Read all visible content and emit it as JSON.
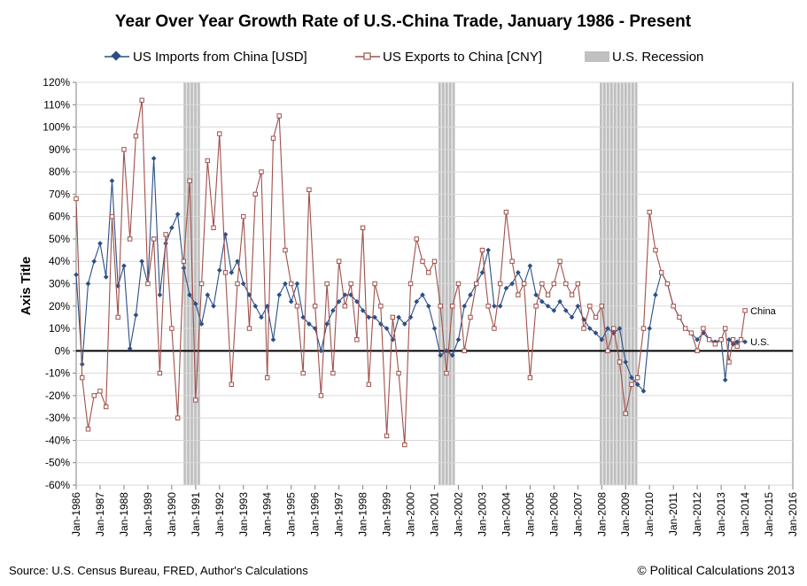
{
  "chart_data": {
    "type": "line",
    "title": "Year Over Year Growth Rate of U.S.-China Trade, January 1986 - Present",
    "ylabel": "Axis Title",
    "xlabel": "",
    "ylim": [
      -0.6,
      1.2
    ],
    "xlim": [
      1986,
      2016
    ],
    "y_ticks": [
      -0.6,
      -0.5,
      -0.4,
      -0.3,
      -0.2,
      -0.1,
      0,
      0.1,
      0.2,
      0.3,
      0.4,
      0.5,
      0.6,
      0.7,
      0.8,
      0.9,
      1.0,
      1.1,
      1.2
    ],
    "y_tick_labels": [
      "-60%",
      "-50%",
      "-40%",
      "-30%",
      "-20%",
      "-10%",
      "0%",
      "10%",
      "20%",
      "30%",
      "40%",
      "50%",
      "60%",
      "70%",
      "80%",
      "90%",
      "100%",
      "110%",
      "120%"
    ],
    "x_ticks": [
      1986,
      1987,
      1988,
      1989,
      1990,
      1991,
      1992,
      1993,
      1994,
      1995,
      1996,
      1997,
      1998,
      1999,
      2000,
      2001,
      2002,
      2003,
      2004,
      2005,
      2006,
      2007,
      2008,
      2009,
      2010,
      2011,
      2012,
      2013,
      2014,
      2015,
      2016
    ],
    "x_tick_labels": [
      "Jan-1986",
      "Jan-1987",
      "Jan-1988",
      "Jan-1989",
      "Jan-1990",
      "Jan-1991",
      "Jan-1992",
      "Jan-1993",
      "Jan-1994",
      "Jan-1995",
      "Jan-1996",
      "Jan-1997",
      "Jan-1998",
      "Jan-1999",
      "Jan-2000",
      "Jan-2001",
      "Jan-2002",
      "Jan-2003",
      "Jan-2004",
      "Jan-2005",
      "Jan-2006",
      "Jan-2007",
      "Jan-2008",
      "Jan-2009",
      "Jan-2010",
      "Jan-2011",
      "Jan-2012",
      "Jan-2013",
      "Jan-2014",
      "Jan-2015",
      "Jan-2016"
    ],
    "grid": "horizontal",
    "legend_position": "top",
    "recessions": [
      {
        "start": 1990.5,
        "end": 1991.17
      },
      {
        "start": 2001.17,
        "end": 2001.83
      },
      {
        "start": 2007.92,
        "end": 2009.42
      }
    ],
    "series": [
      {
        "name": "US Imports from China [USD]",
        "color": "#2a4f86",
        "marker": "diamond",
        "points": [
          [
            1986.0,
            0.34
          ],
          [
            1986.25,
            -0.06
          ],
          [
            1986.5,
            0.3
          ],
          [
            1986.75,
            0.4
          ],
          [
            1987.0,
            0.48
          ],
          [
            1987.25,
            0.33
          ],
          [
            1987.5,
            0.76
          ],
          [
            1987.75,
            0.29
          ],
          [
            1988.0,
            0.38
          ],
          [
            1988.25,
            0.01
          ],
          [
            1988.5,
            0.16
          ],
          [
            1988.75,
            0.4
          ],
          [
            1989.0,
            0.3
          ],
          [
            1989.25,
            0.86
          ],
          [
            1989.5,
            0.25
          ],
          [
            1989.75,
            0.48
          ],
          [
            1990.0,
            0.55
          ],
          [
            1990.25,
            0.61
          ],
          [
            1990.5,
            0.37
          ],
          [
            1990.75,
            0.25
          ],
          [
            1991.0,
            0.21
          ],
          [
            1991.25,
            0.12
          ],
          [
            1991.5,
            0.25
          ],
          [
            1991.75,
            0.2
          ],
          [
            1992.0,
            0.36
          ],
          [
            1992.25,
            0.52
          ],
          [
            1992.5,
            0.35
          ],
          [
            1992.75,
            0.4
          ],
          [
            1993.0,
            0.3
          ],
          [
            1993.25,
            0.25
          ],
          [
            1993.5,
            0.2
          ],
          [
            1993.75,
            0.15
          ],
          [
            1994.0,
            0.2
          ],
          [
            1994.25,
            0.05
          ],
          [
            1994.5,
            0.25
          ],
          [
            1994.75,
            0.3
          ],
          [
            1995.0,
            0.22
          ],
          [
            1995.25,
            0.3
          ],
          [
            1995.5,
            0.15
          ],
          [
            1995.75,
            0.12
          ],
          [
            1996.0,
            0.1
          ],
          [
            1996.25,
            0.0
          ],
          [
            1996.5,
            0.12
          ],
          [
            1996.75,
            0.18
          ],
          [
            1997.0,
            0.22
          ],
          [
            1997.25,
            0.25
          ],
          [
            1997.5,
            0.25
          ],
          [
            1997.75,
            0.22
          ],
          [
            1998.0,
            0.18
          ],
          [
            1998.25,
            0.15
          ],
          [
            1998.5,
            0.15
          ],
          [
            1998.75,
            0.12
          ],
          [
            1999.0,
            0.1
          ],
          [
            1999.25,
            0.05
          ],
          [
            1999.5,
            0.15
          ],
          [
            1999.75,
            0.12
          ],
          [
            2000.0,
            0.15
          ],
          [
            2000.25,
            0.22
          ],
          [
            2000.5,
            0.25
          ],
          [
            2000.75,
            0.2
          ],
          [
            2001.0,
            0.1
          ],
          [
            2001.25,
            -0.02
          ],
          [
            2001.5,
            0.0
          ],
          [
            2001.75,
            -0.02
          ],
          [
            2002.0,
            0.05
          ],
          [
            2002.25,
            0.2
          ],
          [
            2002.5,
            0.25
          ],
          [
            2002.75,
            0.3
          ],
          [
            2003.0,
            0.35
          ],
          [
            2003.25,
            0.45
          ],
          [
            2003.5,
            0.2
          ],
          [
            2003.75,
            0.2
          ],
          [
            2004.0,
            0.28
          ],
          [
            2004.25,
            0.3
          ],
          [
            2004.5,
            0.35
          ],
          [
            2004.75,
            0.3
          ],
          [
            2005.0,
            0.38
          ],
          [
            2005.25,
            0.25
          ],
          [
            2005.5,
            0.22
          ],
          [
            2005.75,
            0.2
          ],
          [
            2006.0,
            0.18
          ],
          [
            2006.25,
            0.22
          ],
          [
            2006.5,
            0.18
          ],
          [
            2006.75,
            0.15
          ],
          [
            2007.0,
            0.2
          ],
          [
            2007.25,
            0.14
          ],
          [
            2007.5,
            0.1
          ],
          [
            2007.75,
            0.08
          ],
          [
            2008.0,
            0.05
          ],
          [
            2008.25,
            0.1
          ],
          [
            2008.5,
            0.08
          ],
          [
            2008.75,
            0.1
          ],
          [
            2009.0,
            -0.05
          ],
          [
            2009.25,
            -0.12
          ],
          [
            2009.5,
            -0.15
          ],
          [
            2009.75,
            -0.18
          ],
          [
            2010.0,
            0.1
          ],
          [
            2010.25,
            0.25
          ],
          [
            2010.5,
            0.35
          ],
          [
            2010.75,
            0.3
          ],
          [
            2011.0,
            0.2
          ],
          [
            2011.25,
            0.15
          ],
          [
            2011.5,
            0.1
          ],
          [
            2011.75,
            0.08
          ],
          [
            2012.0,
            0.05
          ],
          [
            2012.25,
            0.08
          ],
          [
            2012.5,
            0.05
          ],
          [
            2012.75,
            0.04
          ],
          [
            2013.0,
            0.05
          ],
          [
            2013.17,
            -0.13
          ],
          [
            2013.33,
            0.05
          ],
          [
            2013.5,
            0.03
          ],
          [
            2013.67,
            0.04
          ],
          [
            2013.83,
            0.05
          ],
          [
            2014.0,
            0.04
          ]
        ]
      },
      {
        "name": "US Exports to China [CNY]",
        "color": "#a0504b",
        "marker": "square",
        "points": [
          [
            1986.0,
            0.68
          ],
          [
            1986.25,
            -0.12
          ],
          [
            1986.5,
            -0.35
          ],
          [
            1986.75,
            -0.2
          ],
          [
            1987.0,
            -0.18
          ],
          [
            1987.25,
            -0.25
          ],
          [
            1987.5,
            0.6
          ],
          [
            1987.75,
            0.15
          ],
          [
            1988.0,
            0.9
          ],
          [
            1988.25,
            0.5
          ],
          [
            1988.5,
            0.96
          ],
          [
            1988.75,
            1.12
          ],
          [
            1989.0,
            0.3
          ],
          [
            1989.25,
            0.5
          ],
          [
            1989.5,
            -0.1
          ],
          [
            1989.75,
            0.52
          ],
          [
            1990.0,
            0.1
          ],
          [
            1990.25,
            -0.3
          ],
          [
            1990.5,
            0.4
          ],
          [
            1990.75,
            0.76
          ],
          [
            1991.0,
            -0.22
          ],
          [
            1991.25,
            0.3
          ],
          [
            1991.5,
            0.85
          ],
          [
            1991.75,
            0.55
          ],
          [
            1992.0,
            0.97
          ],
          [
            1992.25,
            0.35
          ],
          [
            1992.5,
            -0.15
          ],
          [
            1992.75,
            0.3
          ],
          [
            1993.0,
            0.6
          ],
          [
            1993.25,
            0.1
          ],
          [
            1993.5,
            0.7
          ],
          [
            1993.75,
            0.8
          ],
          [
            1994.0,
            -0.12
          ],
          [
            1994.25,
            0.95
          ],
          [
            1994.5,
            1.05
          ],
          [
            1994.75,
            0.45
          ],
          [
            1995.0,
            0.3
          ],
          [
            1995.25,
            0.2
          ],
          [
            1995.5,
            -0.1
          ],
          [
            1995.75,
            0.72
          ],
          [
            1996.0,
            0.2
          ],
          [
            1996.25,
            -0.2
          ],
          [
            1996.5,
            0.3
          ],
          [
            1996.75,
            -0.1
          ],
          [
            1997.0,
            0.4
          ],
          [
            1997.25,
            0.2
          ],
          [
            1997.5,
            0.3
          ],
          [
            1997.75,
            0.05
          ],
          [
            1998.0,
            0.55
          ],
          [
            1998.25,
            -0.15
          ],
          [
            1998.5,
            0.3
          ],
          [
            1998.75,
            0.2
          ],
          [
            1999.0,
            -0.38
          ],
          [
            1999.25,
            0.15
          ],
          [
            1999.5,
            -0.1
          ],
          [
            1999.75,
            -0.42
          ],
          [
            2000.0,
            0.3
          ],
          [
            2000.25,
            0.5
          ],
          [
            2000.5,
            0.4
          ],
          [
            2000.75,
            0.35
          ],
          [
            2001.0,
            0.4
          ],
          [
            2001.25,
            0.2
          ],
          [
            2001.5,
            -0.1
          ],
          [
            2001.75,
            0.2
          ],
          [
            2002.0,
            0.3
          ],
          [
            2002.25,
            0.0
          ],
          [
            2002.5,
            0.15
          ],
          [
            2002.75,
            0.3
          ],
          [
            2003.0,
            0.45
          ],
          [
            2003.25,
            0.2
          ],
          [
            2003.5,
            0.1
          ],
          [
            2003.75,
            0.3
          ],
          [
            2004.0,
            0.62
          ],
          [
            2004.25,
            0.4
          ],
          [
            2004.5,
            0.25
          ],
          [
            2004.75,
            0.3
          ],
          [
            2005.0,
            -0.12
          ],
          [
            2005.25,
            0.2
          ],
          [
            2005.5,
            0.3
          ],
          [
            2005.75,
            0.25
          ],
          [
            2006.0,
            0.3
          ],
          [
            2006.25,
            0.4
          ],
          [
            2006.5,
            0.3
          ],
          [
            2006.75,
            0.25
          ],
          [
            2007.0,
            0.3
          ],
          [
            2007.25,
            0.1
          ],
          [
            2007.5,
            0.2
          ],
          [
            2007.75,
            0.15
          ],
          [
            2008.0,
            0.2
          ],
          [
            2008.25,
            0.0
          ],
          [
            2008.5,
            0.1
          ],
          [
            2008.75,
            -0.05
          ],
          [
            2009.0,
            -0.28
          ],
          [
            2009.25,
            -0.15
          ],
          [
            2009.5,
            -0.12
          ],
          [
            2009.75,
            0.1
          ],
          [
            2010.0,
            0.62
          ],
          [
            2010.25,
            0.45
          ],
          [
            2010.5,
            0.35
          ],
          [
            2010.75,
            0.3
          ],
          [
            2011.0,
            0.2
          ],
          [
            2011.25,
            0.15
          ],
          [
            2011.5,
            0.1
          ],
          [
            2011.75,
            0.08
          ],
          [
            2012.0,
            0.0
          ],
          [
            2012.25,
            0.1
          ],
          [
            2012.5,
            0.05
          ],
          [
            2012.75,
            0.03
          ],
          [
            2013.0,
            0.05
          ],
          [
            2013.17,
            0.1
          ],
          [
            2013.33,
            -0.05
          ],
          [
            2013.5,
            0.05
          ],
          [
            2013.67,
            0.02
          ],
          [
            2013.83,
            0.05
          ],
          [
            2014.0,
            0.18
          ]
        ]
      }
    ],
    "legend": [
      {
        "label": "US Imports from China [USD]",
        "type": "line",
        "color": "#2a4f86"
      },
      {
        "label": "US Exports to China [CNY]",
        "type": "line",
        "color": "#a0504b"
      },
      {
        "label": "U.S. Recession",
        "type": "band",
        "color": "#c0c0c0"
      }
    ],
    "annotations": [
      {
        "text": "China",
        "x": 2014.0,
        "y": 0.18
      },
      {
        "text": "U.S.",
        "x": 2014.0,
        "y": 0.04
      }
    ]
  },
  "footer": {
    "source": "Source: U.S. Census Bureau, FRED, Author's Calculations",
    "copyright": "© Political Calculations 2013"
  }
}
